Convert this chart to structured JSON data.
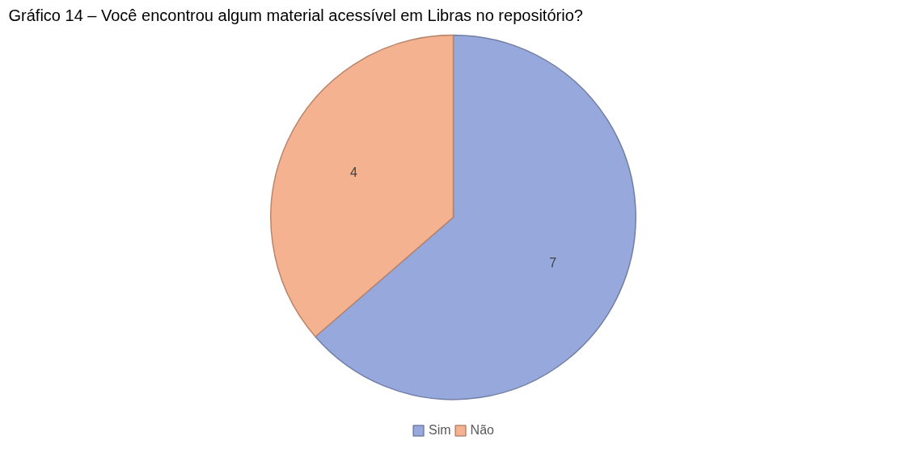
{
  "chart_data": {
    "type": "pie",
    "title": "Gráfico 14 – Você encontrou algum material acessível em Libras no repositório?",
    "categories": [
      "Sim",
      "Não"
    ],
    "values": [
      7,
      4
    ],
    "colors": [
      "#97a9dc",
      "#f5b291"
    ],
    "data_labels": true,
    "legend": "bottom"
  }
}
